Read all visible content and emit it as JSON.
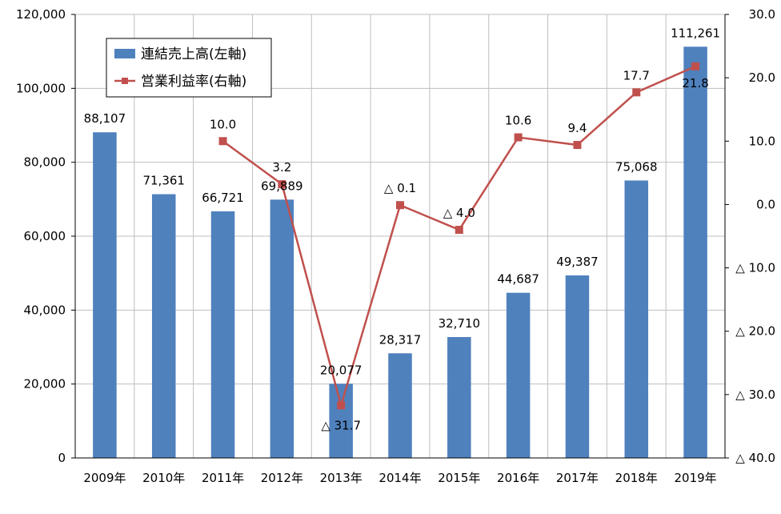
{
  "chart_data": {
    "type": "bar",
    "categories": [
      "2009年",
      "2010年",
      "2011年",
      "2012年",
      "2013年",
      "2014年",
      "2015年",
      "2016年",
      "2017年",
      "2018年",
      "2019年"
    ],
    "series": [
      {
        "name": "連結売上高(左軸)",
        "type": "bar",
        "axis": "left",
        "color": "#4f81bd",
        "values": [
          88107,
          71361,
          66721,
          69889,
          20077,
          28317,
          32710,
          44687,
          49387,
          75068,
          111261
        ],
        "labels": [
          "88,107",
          "71,361",
          "66,721",
          "69,889",
          "20,077",
          "28,317",
          "32,710",
          "44,687",
          "49,387",
          "75,068",
          "111,261"
        ]
      },
      {
        "name": "営業利益率(右軸)",
        "type": "line",
        "axis": "right",
        "color": "#c0504d",
        "values": [
          null,
          null,
          10.0,
          3.2,
          -31.7,
          -0.1,
          -4.0,
          10.6,
          9.4,
          17.7,
          21.8
        ],
        "labels": [
          "",
          "",
          "10.0",
          "3.2",
          "△ 31.7",
          "△ 0.1",
          "△ 4.0",
          "10.6",
          "9.4",
          "17.7",
          "21.8"
        ]
      }
    ],
    "y_left": {
      "ylim": [
        0,
        120000
      ],
      "ticks": [
        0,
        20000,
        40000,
        60000,
        80000,
        100000,
        120000
      ],
      "tick_labels": [
        "0",
        "20,000",
        "40,000",
        "60,000",
        "80,000",
        "100,000",
        "120,000"
      ]
    },
    "y_right": {
      "ylim": [
        -40,
        30
      ],
      "ticks": [
        30,
        20,
        10,
        0,
        -10,
        -20,
        -30,
        -40
      ],
      "tick_labels": [
        "30.0",
        "20.0",
        "10.0",
        "0.0",
        "△ 10.0",
        "△ 20.0",
        "△ 30.0",
        "△ 40.0"
      ]
    },
    "title": "",
    "grid": true,
    "legend_position": "top-left"
  }
}
